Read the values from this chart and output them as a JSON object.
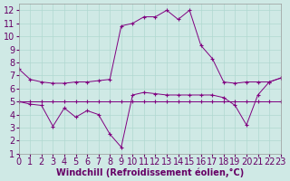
{
  "title": "",
  "xlabel": "Windchill (Refroidissement éolien,°C)",
  "ylabel": "",
  "bg_color": "#cfe9e5",
  "line_color": "#800080",
  "grid_color": "#b0d8d0",
  "xlim": [
    0,
    23
  ],
  "ylim": [
    1,
    12.5
  ],
  "yticks": [
    1,
    2,
    3,
    4,
    5,
    6,
    7,
    8,
    9,
    10,
    11,
    12
  ],
  "xticks": [
    0,
    1,
    2,
    3,
    4,
    5,
    6,
    7,
    8,
    9,
    10,
    11,
    12,
    13,
    14,
    15,
    16,
    17,
    18,
    19,
    20,
    21,
    22,
    23
  ],
  "line1_x": [
    0,
    1,
    2,
    3,
    4,
    5,
    6,
    7,
    8,
    9,
    10,
    11,
    12,
    13,
    14,
    15,
    16,
    17,
    18,
    19,
    20,
    21,
    22,
    23
  ],
  "line1_y": [
    7.5,
    6.7,
    6.5,
    6.4,
    6.4,
    6.5,
    6.5,
    6.6,
    6.7,
    10.8,
    11.0,
    11.5,
    11.5,
    12.0,
    11.3,
    12.0,
    9.3,
    8.3,
    6.5,
    6.4,
    6.5,
    6.5,
    6.5,
    6.8
  ],
  "line2_x": [
    0,
    1,
    2,
    3,
    4,
    5,
    6,
    7,
    8,
    9,
    10,
    11,
    12,
    13,
    14,
    15,
    16,
    17,
    18,
    19,
    20,
    21,
    22,
    23
  ],
  "line2_y": [
    5.0,
    5.0,
    5.0,
    5.0,
    5.0,
    5.0,
    5.0,
    5.0,
    5.0,
    5.0,
    5.0,
    5.0,
    5.0,
    5.0,
    5.0,
    5.0,
    5.0,
    5.0,
    5.0,
    5.0,
    5.0,
    5.0,
    5.0,
    5.0
  ],
  "line3_x": [
    0,
    1,
    2,
    3,
    4,
    5,
    6,
    7,
    8,
    9,
    10,
    11,
    12,
    13,
    14,
    15,
    16,
    17,
    18,
    19,
    20,
    21,
    22,
    23
  ],
  "line3_y": [
    5.0,
    4.8,
    4.7,
    3.1,
    4.5,
    3.8,
    4.3,
    4.0,
    2.5,
    1.5,
    5.5,
    5.7,
    5.6,
    5.5,
    5.5,
    5.5,
    5.5,
    5.5,
    5.3,
    4.7,
    3.2,
    5.5,
    6.5,
    6.8
  ],
  "font_size_xlabel": 7,
  "font_size_tick": 7
}
